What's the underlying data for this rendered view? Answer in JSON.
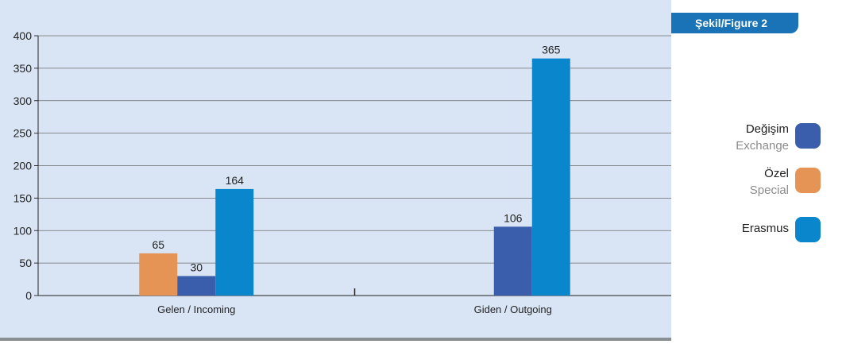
{
  "figure_label": "Şekil/Figure 2",
  "chart_data": {
    "type": "bar",
    "title": "",
    "xlabel": "",
    "ylabel": "",
    "ylim": [
      0,
      400
    ],
    "yticks": [
      0,
      50,
      100,
      150,
      200,
      250,
      300,
      350,
      400
    ],
    "categories": [
      "Gelen / Incoming",
      "Giden / Outgoing"
    ],
    "series": [
      {
        "name": "Özel Special",
        "color": "#e69455",
        "values": [
          65,
          null
        ]
      },
      {
        "name": "Değişim Exchange",
        "color": "#3a5eab",
        "values": [
          30,
          106
        ]
      },
      {
        "name": "Erasmus",
        "color": "#0a87cc",
        "values": [
          164,
          365
        ]
      }
    ],
    "legend_position": "right",
    "grid": true
  },
  "legend": [
    {
      "tr": "Değişim",
      "en": "Exchange",
      "color": "#3a5eab"
    },
    {
      "tr": "Özel",
      "en": "Special",
      "color": "#e69455"
    },
    {
      "tr": "Erasmus",
      "en": "",
      "color": "#0a87cc"
    }
  ]
}
